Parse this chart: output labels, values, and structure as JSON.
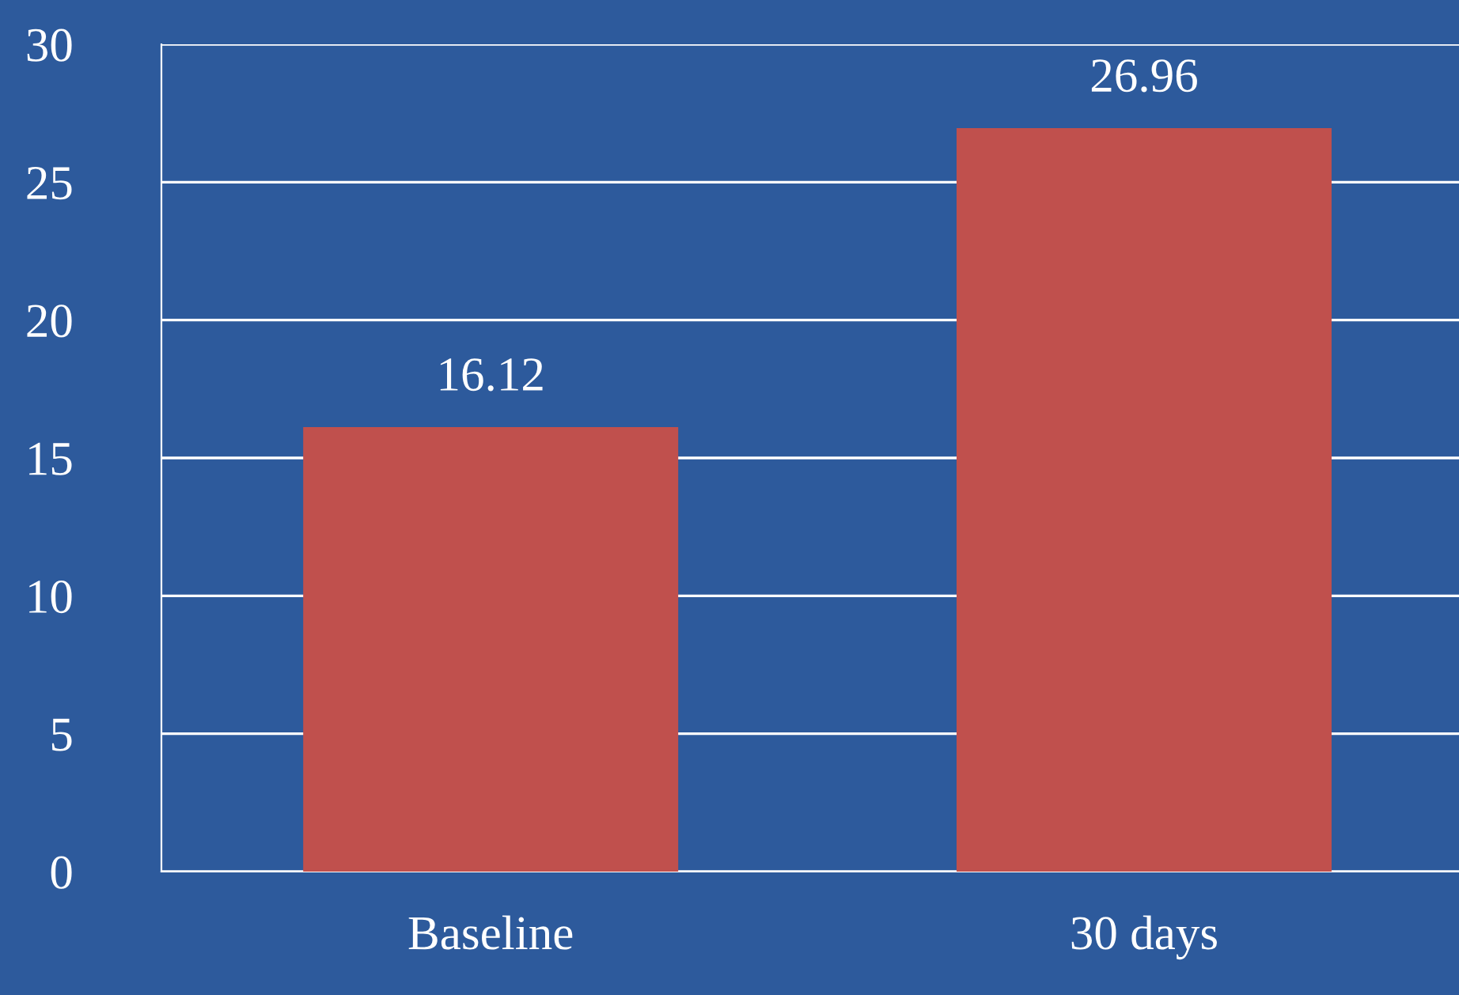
{
  "chart_data": {
    "type": "bar",
    "categories": [
      "Baseline",
      "30 days"
    ],
    "values": [
      16.12,
      26.96
    ],
    "color": "#c0504d",
    "ylim": [
      0,
      30
    ],
    "yticks": [
      0,
      5,
      10,
      15,
      20,
      25,
      30
    ],
    "grid": "y",
    "data_labels": true
  }
}
